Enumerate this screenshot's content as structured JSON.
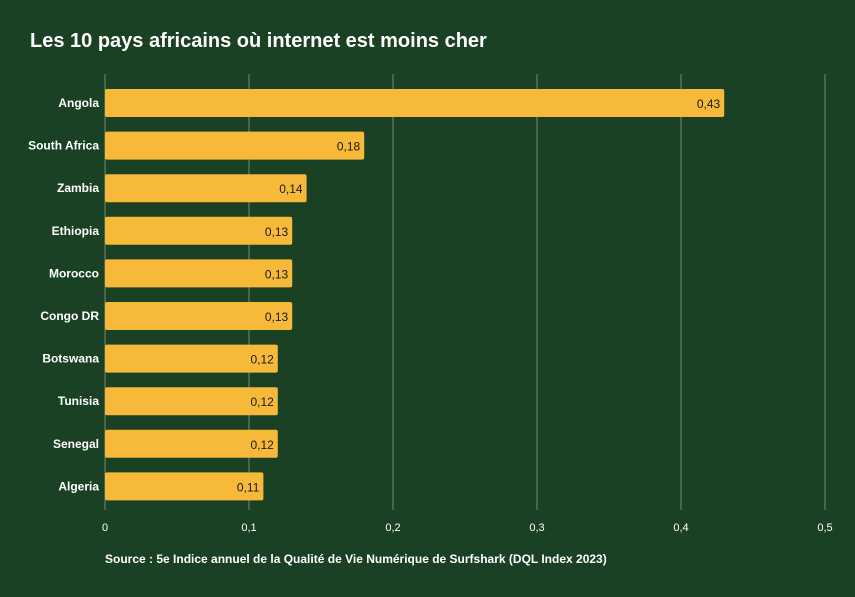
{
  "chart_data": {
    "type": "bar",
    "orientation": "horizontal",
    "title": "Les 10 pays africains où internet est moins cher",
    "categories": [
      "Angola",
      "South Africa",
      "Zambia",
      "Ethiopia",
      "Morocco",
      "Congo DR",
      "Botswana",
      "Tunisia",
      "Senegal",
      "Algeria"
    ],
    "values": [
      0.43,
      0.18,
      0.14,
      0.13,
      0.13,
      0.13,
      0.12,
      0.12,
      0.12,
      0.11
    ],
    "value_labels": [
      "0,43",
      "0,18",
      "0,14",
      "0,13",
      "0,13",
      "0,13",
      "0,12",
      "0,12",
      "0,12",
      "0,11"
    ],
    "xlim": [
      0,
      0.5
    ],
    "x_ticks": [
      0,
      0.1,
      0.2,
      0.3,
      0.4,
      0.5
    ],
    "x_tick_labels": [
      "0",
      "0,1",
      "0,2",
      "0,3",
      "0,4",
      "0,5"
    ],
    "xlabel": "",
    "ylabel": "",
    "grid": "vertical",
    "legend": "none",
    "source": "Source : 5e Indice annuel de la Qualité de Vie Numérique de Surfshark (DQL Index 2023)"
  },
  "colors": {
    "background": "#1b4125",
    "bar": "#f7b939",
    "grid": "#6f8a73",
    "text": "#ffffff",
    "value_text": "#1a1a1a"
  }
}
